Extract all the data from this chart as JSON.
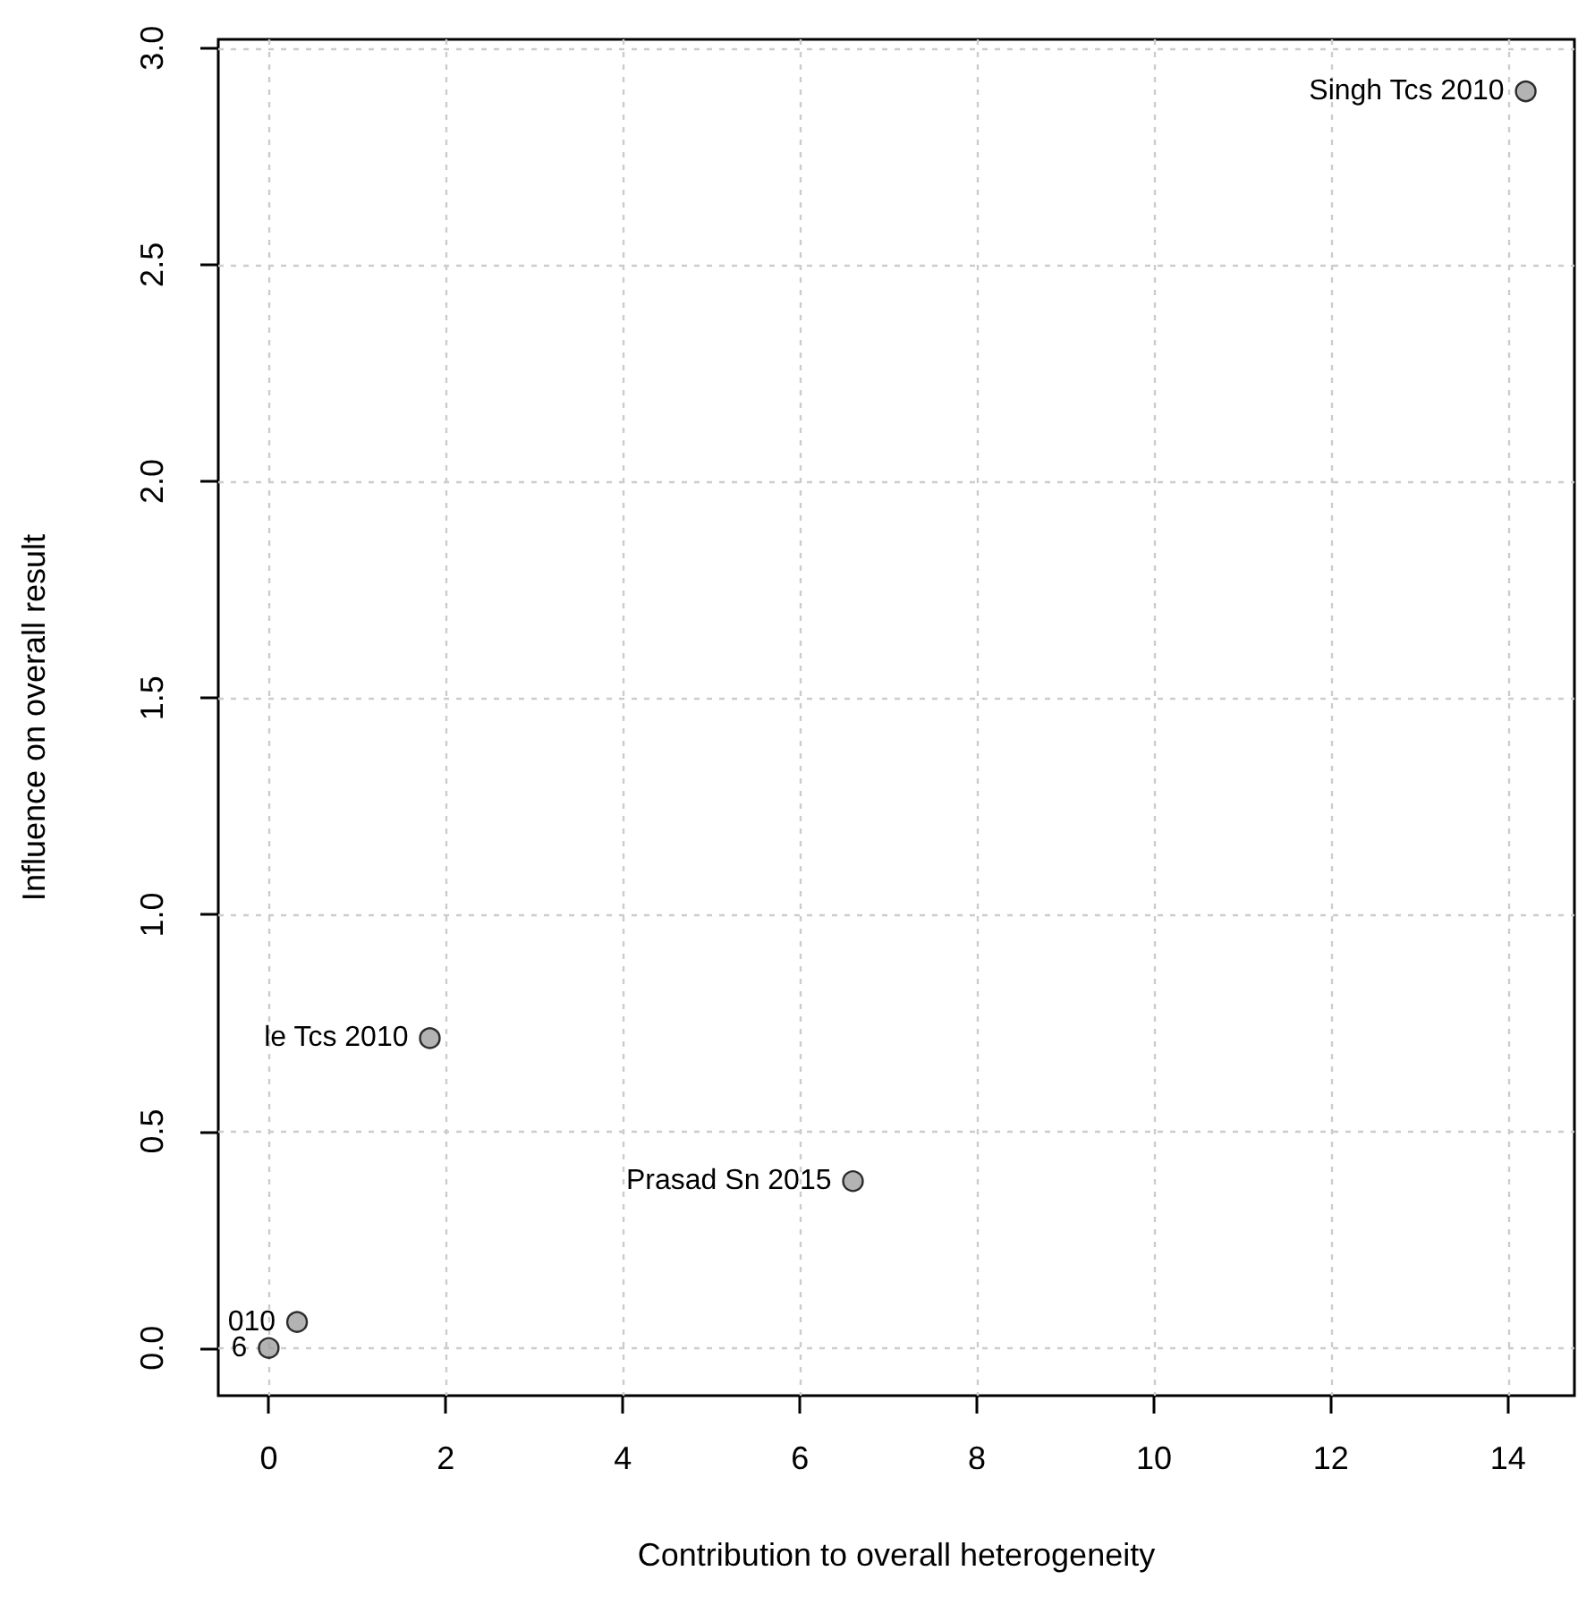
{
  "chart_data": {
    "type": "scatter",
    "xlabel": "Contribution to overall heterogeneity",
    "ylabel": "Influence on overall result",
    "x": [
      0.0,
      0.32,
      1.82,
      6.6,
      14.2
    ],
    "values": [
      0.0,
      0.06,
      0.715,
      0.385,
      2.9
    ],
    "annotations": [
      {
        "text": "6",
        "x": 0.0,
        "y": 0.0
      },
      {
        "text": "010",
        "x": 0.32,
        "y": 0.06
      },
      {
        "text": "le Tcs 2010",
        "x": 1.82,
        "y": 0.715
      },
      {
        "text": "Prasad Sn 2015",
        "x": 6.6,
        "y": 0.385
      },
      {
        "text": "Singh Tcs 2010",
        "x": 14.2,
        "y": 2.9
      }
    ],
    "color": "#a0a0a0",
    "marker": "circle",
    "xlim": [
      -0.57,
      14.75
    ],
    "ylim": [
      -0.11,
      3.02
    ],
    "xticks": [
      0,
      2,
      4,
      6,
      8,
      10,
      12,
      14
    ],
    "yticks": [
      {
        "value": 0,
        "label": "0.0"
      },
      {
        "value": 0.5,
        "label": "0.5"
      },
      {
        "value": 1,
        "label": "1.0"
      },
      {
        "value": 1.5,
        "label": "1.5"
      },
      {
        "value": 2,
        "label": "2.0"
      },
      {
        "value": 2.5,
        "label": "2.5"
      },
      {
        "value": 3,
        "label": "3.0"
      }
    ],
    "grid": true
  }
}
